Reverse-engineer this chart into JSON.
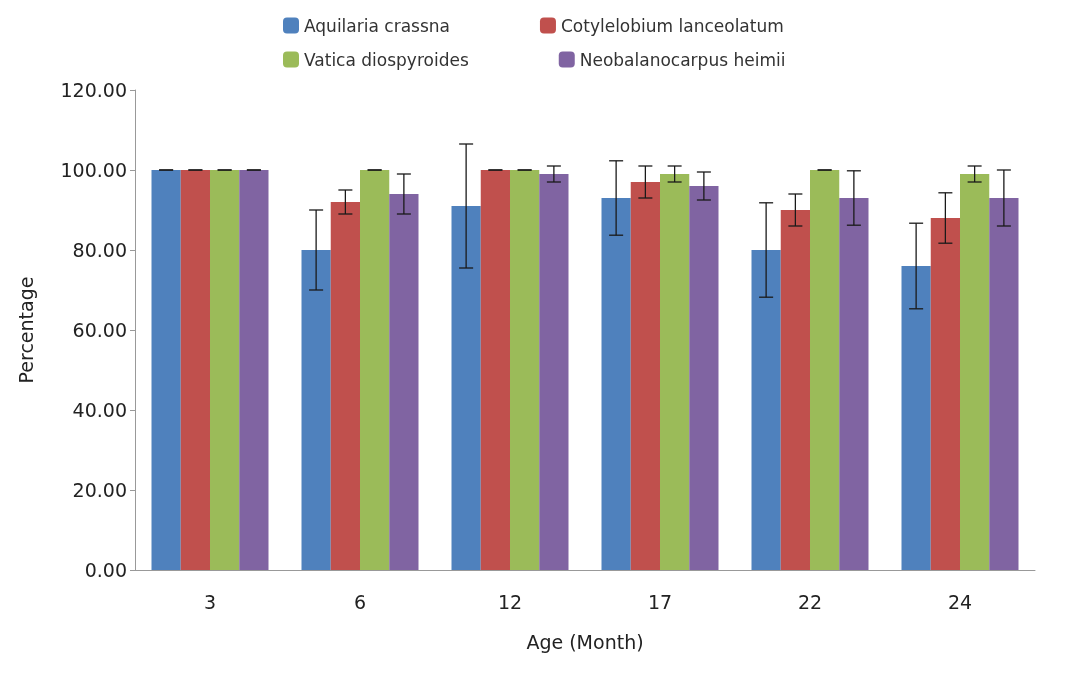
{
  "chart_data": {
    "type": "bar",
    "xlabel": "Age (Month)",
    "ylabel": "Percentage",
    "categories": [
      "3",
      "6",
      "12",
      "17",
      "22",
      "24"
    ],
    "series": [
      {
        "name": "Aquilaria crassna",
        "color": "#4f81bd",
        "values": [
          100,
          80,
          91,
          93,
          80,
          76
        ],
        "errors": [
          0,
          10,
          15.5,
          9.3,
          11.8,
          10.7
        ]
      },
      {
        "name": "Cotylelobium lanceolatum",
        "color": "#c0504d",
        "values": [
          100,
          92,
          100,
          97,
          90,
          88
        ],
        "errors": [
          0,
          3,
          0,
          4,
          4,
          6.3
        ]
      },
      {
        "name": "Vatica diospyroides",
        "color": "#9bbb59",
        "values": [
          100,
          100,
          100,
          99,
          100,
          99
        ],
        "errors": [
          0,
          0,
          0,
          2,
          0,
          2
        ]
      },
      {
        "name": "Neobalanocarpus heimii",
        "color": "#8064a2",
        "values": [
          100,
          94,
          99,
          96,
          93,
          93
        ],
        "errors": [
          0,
          5,
          2,
          3.5,
          6.8,
          7
        ]
      }
    ],
    "ylim": [
      0,
      120
    ],
    "yticks": [
      {
        "value": 0,
        "label": "0.00"
      },
      {
        "value": 20,
        "label": "20.00"
      },
      {
        "value": 40,
        "label": "40.00"
      },
      {
        "value": 60,
        "label": "60.00"
      },
      {
        "value": 80,
        "label": "80.00"
      },
      {
        "value": 100,
        "label": "100.00"
      },
      {
        "value": 120,
        "label": "120.00"
      }
    ],
    "grid": false,
    "legend": "top"
  }
}
